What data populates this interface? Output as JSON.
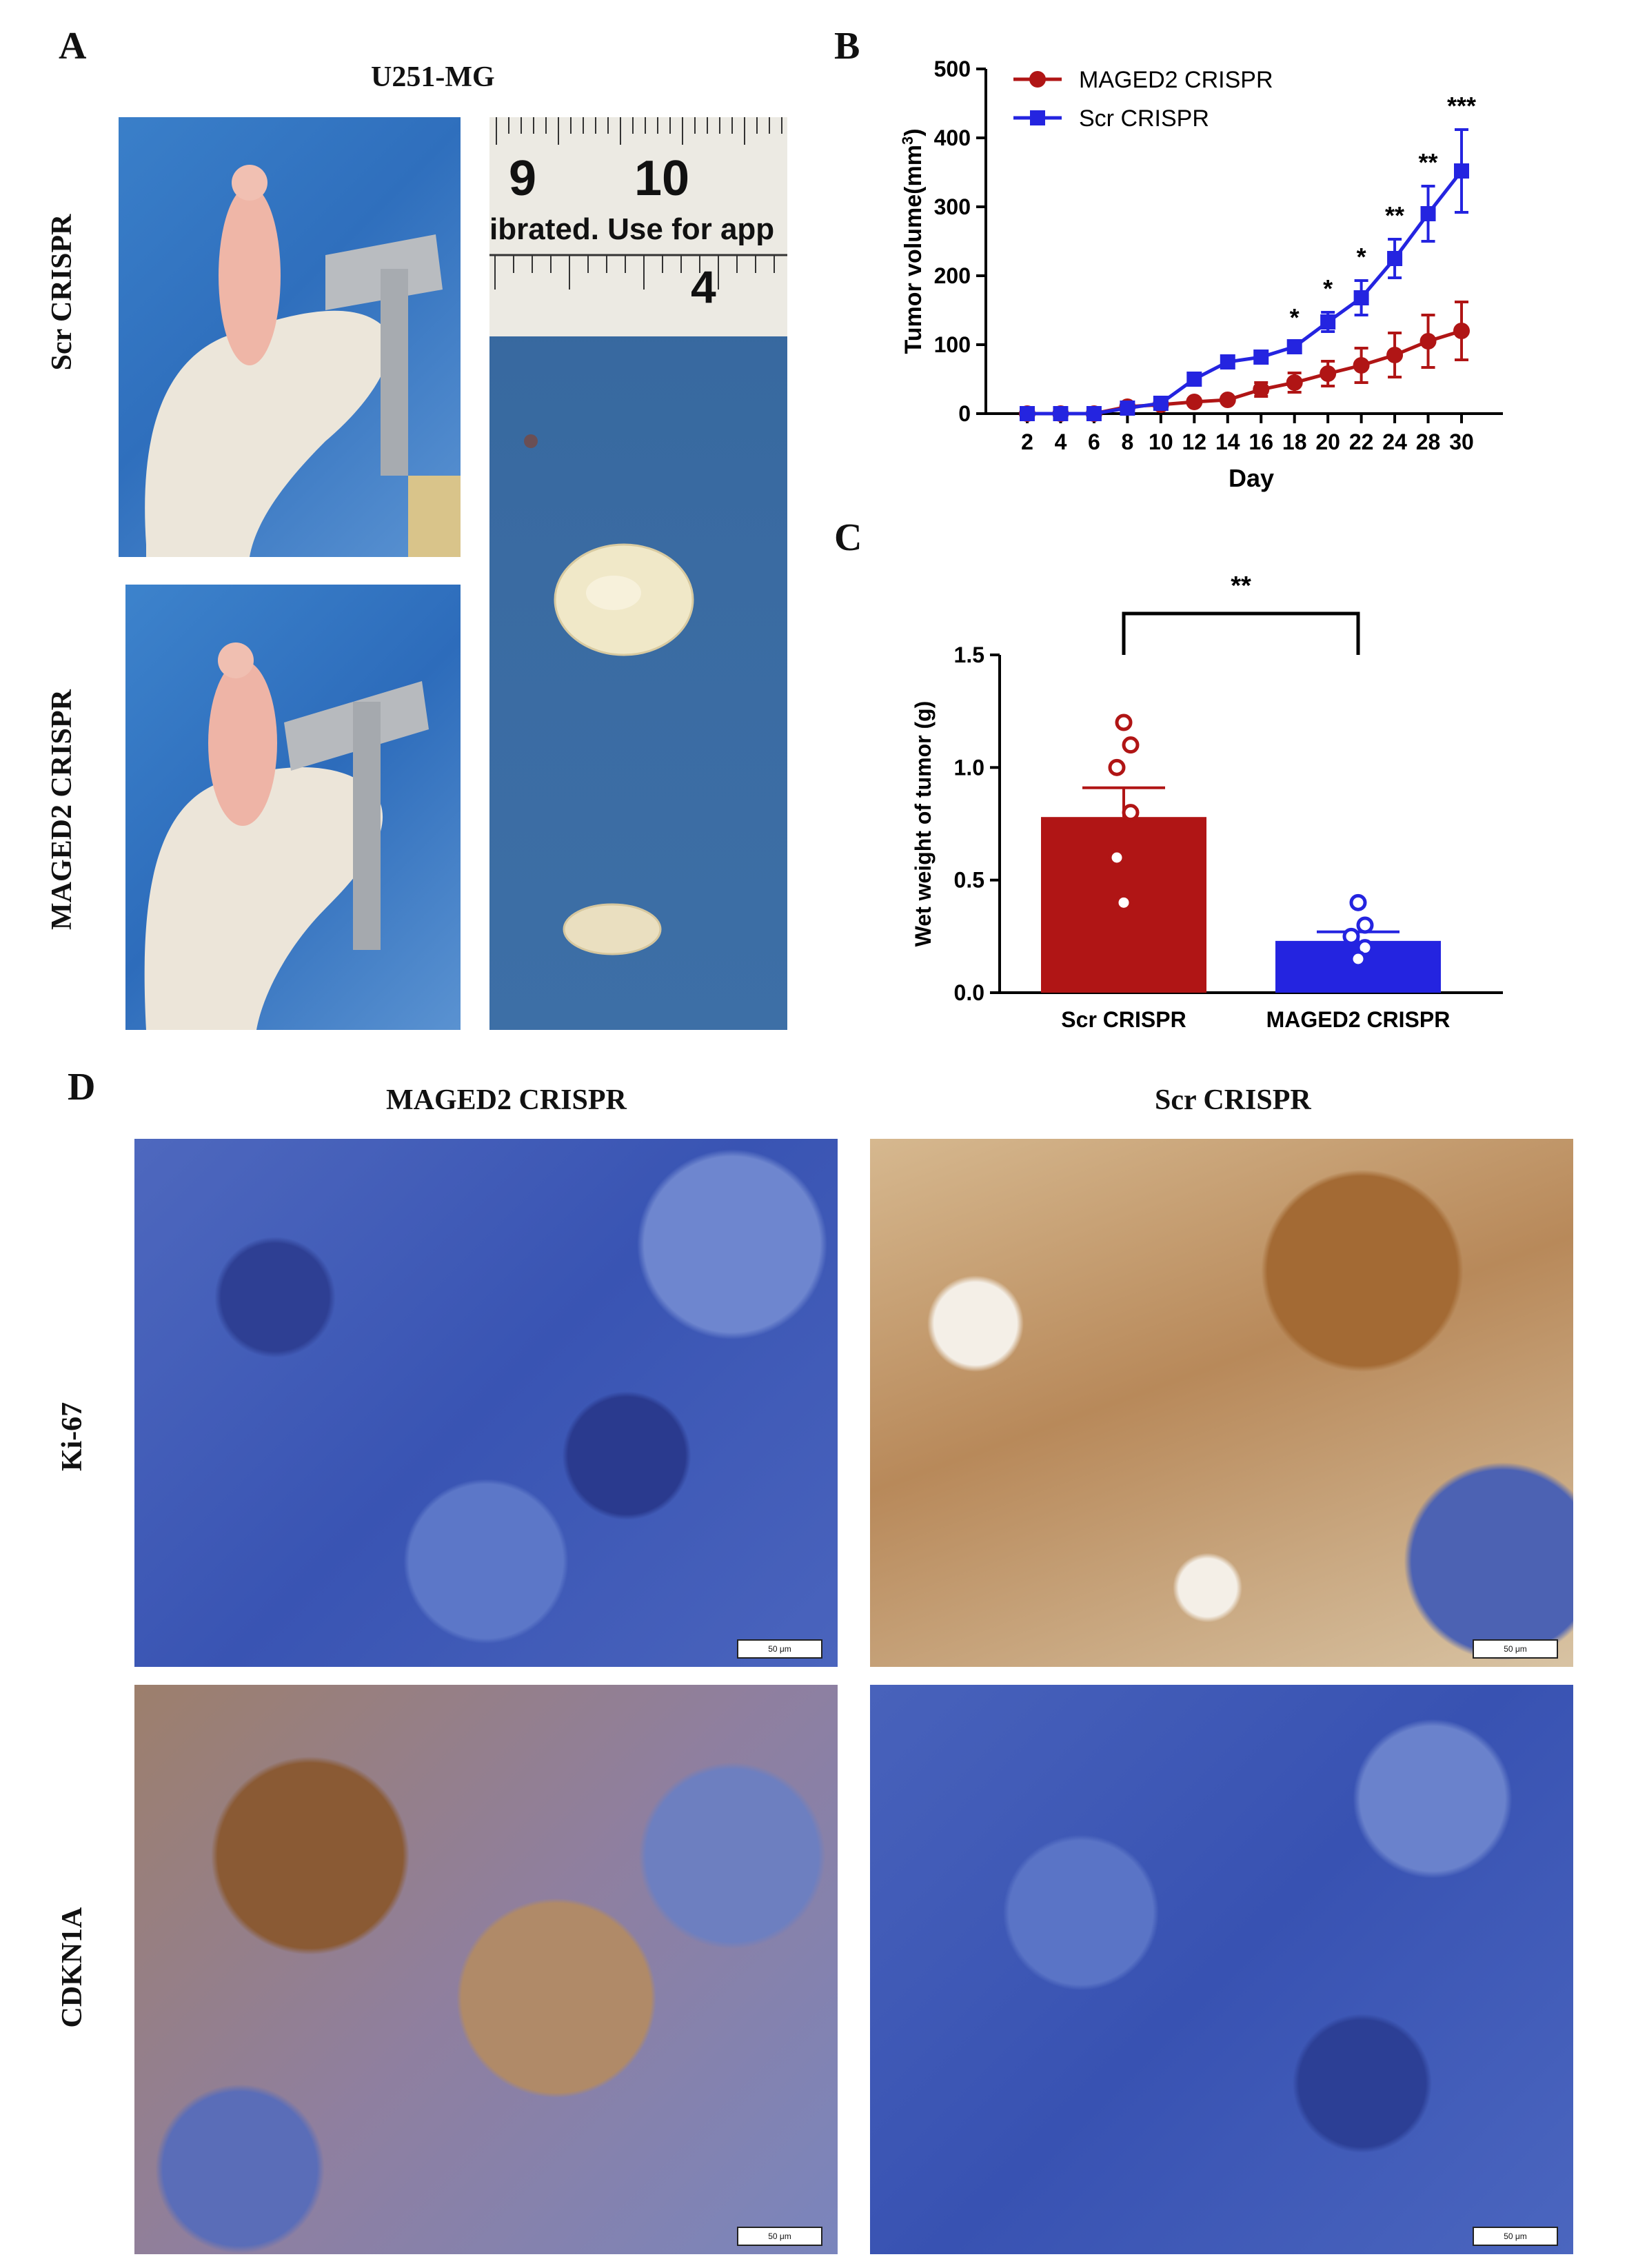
{
  "panels": {
    "a": {
      "letter": "A",
      "title": "U251-MG",
      "row_labels": [
        "Scr CRISPR",
        "MAGED2 CRISPR"
      ]
    },
    "b": {
      "letter": "B"
    },
    "c": {
      "letter": "C"
    },
    "d": {
      "letter": "D",
      "col_labels": [
        "MAGED2 CRISPR",
        "Scr CRISPR"
      ],
      "row_labels": [
        "Ki-67",
        "CDKN1A"
      ],
      "scale_bar": "50 μm"
    }
  },
  "ruler": {
    "top_numbers": [
      "9",
      "10"
    ],
    "caption": "ibrated. Use for app",
    "bottom_number": "4"
  },
  "colors": {
    "maged2": "#b01515",
    "scr": "#2424e0",
    "ihc_blue": "#3f59b8",
    "ihc_brown": "#8a5a2b"
  },
  "chart_data": [
    {
      "type": "line",
      "panel": "B",
      "xlabel": "Day",
      "ylabel_main": "Tumor volume(mm",
      "ylabel_sup": "3",
      "ylabel_end": ")",
      "x": [
        2,
        4,
        6,
        8,
        10,
        12,
        14,
        16,
        18,
        20,
        22,
        24,
        28,
        30
      ],
      "x_ticks": [
        "2",
        "4",
        "6",
        "8",
        "10",
        "12",
        "14",
        "16",
        "18",
        "20",
        "22",
        "24",
        "28",
        "30"
      ],
      "ylim": [
        0,
        500
      ],
      "y_ticks": [
        "0",
        "100",
        "200",
        "300",
        "400",
        "500"
      ],
      "legend_position": "top-left",
      "series": [
        {
          "name": "MAGED2 CRISPR",
          "values": [
            0,
            0,
            0,
            10,
            13,
            17,
            20,
            35,
            45,
            58,
            70,
            85,
            105,
            120
          ],
          "errors": [
            0,
            0,
            0,
            2,
            3,
            3,
            4,
            10,
            14,
            18,
            25,
            32,
            38,
            42
          ]
        },
        {
          "name": "Scr CRISPR",
          "values": [
            0,
            0,
            0,
            8,
            15,
            50,
            75,
            82,
            97,
            133,
            168,
            225,
            290,
            352
          ],
          "errors": [
            0,
            0,
            0,
            2,
            3,
            5,
            6,
            6,
            8,
            14,
            25,
            28,
            40,
            60
          ]
        }
      ],
      "significance": [
        {
          "x": 18,
          "label": "*"
        },
        {
          "x": 20,
          "label": "*"
        },
        {
          "x": 22,
          "label": "*"
        },
        {
          "x": 24,
          "label": "**"
        },
        {
          "x": 28,
          "label": "**"
        },
        {
          "x": 30,
          "label": "***"
        }
      ]
    },
    {
      "type": "bar",
      "panel": "C",
      "categories": [
        "Scr CRISPR",
        "MAGED2 CRISPR"
      ],
      "values": [
        0.78,
        0.23
      ],
      "errors": [
        0.13,
        0.04
      ],
      "points": [
        [
          1.2,
          1.1,
          1.0,
          0.8,
          0.6,
          0.4
        ],
        [
          0.4,
          0.3,
          0.25,
          0.2,
          0.15
        ]
      ],
      "ylabel": "Wet weight of tumor (g)",
      "ylim": [
        0,
        1.5
      ],
      "y_ticks": [
        "0.0",
        "0.5",
        "1.0",
        "1.5"
      ],
      "significance": "**"
    }
  ]
}
